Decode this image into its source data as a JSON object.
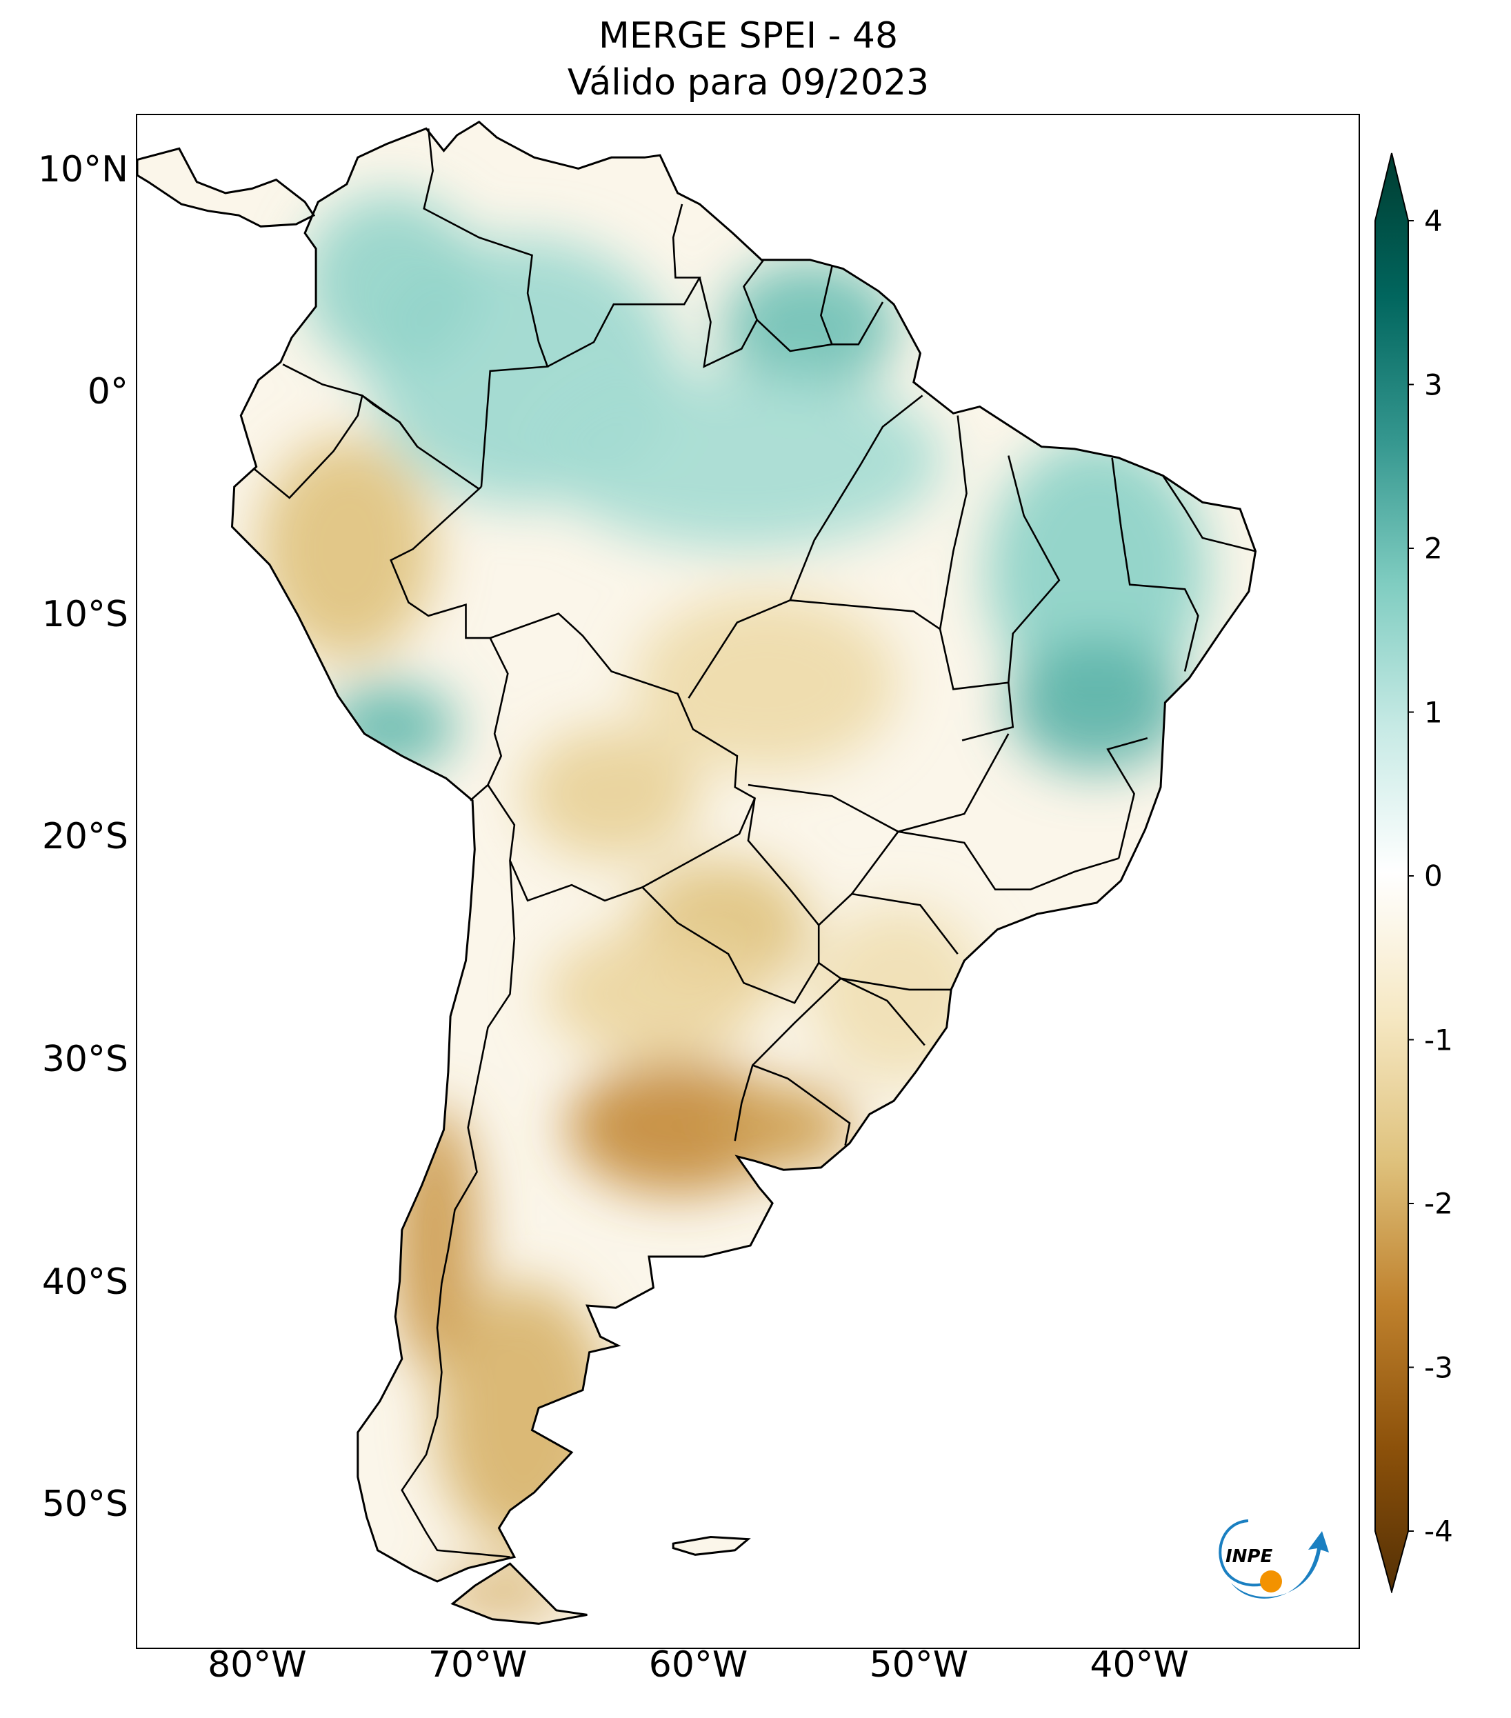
{
  "title": {
    "line1": "MERGE   SPEI - 48",
    "line2": "Válido para 09/2023"
  },
  "map": {
    "region": "South America",
    "projection": "PlateCarree",
    "extent": {
      "lon_min": -85.5,
      "lon_max": -30,
      "lat_min": -56.5,
      "lat_max": 12.5
    },
    "lat_ticks": [
      {
        "value": 10,
        "label": "10°N"
      },
      {
        "value": 0,
        "label": "0°"
      },
      {
        "value": -10,
        "label": "10°S"
      },
      {
        "value": -20,
        "label": "20°S"
      },
      {
        "value": -30,
        "label": "30°S"
      },
      {
        "value": -40,
        "label": "40°S"
      },
      {
        "value": -50,
        "label": "50°S"
      }
    ],
    "lon_ticks": [
      {
        "value": -80,
        "label": "80°W"
      },
      {
        "value": -70,
        "label": "70°W"
      },
      {
        "value": -60,
        "label": "60°W"
      },
      {
        "value": -50,
        "label": "50°W"
      },
      {
        "value": -40,
        "label": "40°W"
      }
    ],
    "field_regions": [
      {
        "name": "northwest-amazon-wet",
        "lon": -68,
        "lat": 1,
        "rx": 7,
        "ry": 6,
        "spei": 1.3
      },
      {
        "name": "guiana-wet",
        "lon": -55,
        "lat": 3,
        "rx": 4,
        "ry": 3,
        "spei": 1.8
      },
      {
        "name": "central-amazon-wet",
        "lon": -58,
        "lat": -3,
        "rx": 9,
        "ry": 4,
        "spei": 1.2
      },
      {
        "name": "colombia-west-wet",
        "lon": -74,
        "lat": 5,
        "rx": 4,
        "ry": 4,
        "spei": 1.4
      },
      {
        "name": "northeast-brazil-wet",
        "lon": -42,
        "lat": -8,
        "rx": 5,
        "ry": 6,
        "spei": 1.5
      },
      {
        "name": "bahia-wet",
        "lon": -42,
        "lat": -14,
        "rx": 4,
        "ry": 3,
        "spei": 2.0
      },
      {
        "name": "peru-coast-wet",
        "lon": -74,
        "lat": -15,
        "rx": 3,
        "ry": 2,
        "spei": 1.9
      },
      {
        "name": "peru-dry",
        "lon": -76,
        "lat": -7,
        "rx": 4,
        "ry": 5,
        "spei": -1.6
      },
      {
        "name": "mato-grosso-dry",
        "lon": -57,
        "lat": -13,
        "rx": 6,
        "ry": 4,
        "spei": -1.1
      },
      {
        "name": "bolivia-dry",
        "lon": -64,
        "lat": -18,
        "rx": 4,
        "ry": 3,
        "spei": -1.3
      },
      {
        "name": "paraguay-dry",
        "lon": -59,
        "lat": -24,
        "rx": 4,
        "ry": 3,
        "spei": -1.6
      },
      {
        "name": "chaco-dry",
        "lon": -62,
        "lat": -27,
        "rx": 5,
        "ry": 3,
        "spei": -1.2
      },
      {
        "name": "pampas-dry",
        "lon": -61,
        "lat": -33,
        "rx": 5,
        "ry": 3,
        "spei": -2.3
      },
      {
        "name": "uruguay-dry",
        "lon": -56,
        "lat": -33,
        "rx": 3,
        "ry": 2,
        "spei": -2.0
      },
      {
        "name": "south-brazil-dry",
        "lon": -51,
        "lat": -27,
        "rx": 4,
        "ry": 4,
        "spei": -1.0
      },
      {
        "name": "chile-central-dry",
        "lon": -72,
        "lat": -38,
        "rx": 2,
        "ry": 6,
        "spei": -2.1
      },
      {
        "name": "patagonia-dry",
        "lon": -68,
        "lat": -46,
        "rx": 4,
        "ry": 6,
        "spei": -1.8
      },
      {
        "name": "tierra-del-fuego-dry",
        "lon": -69,
        "lat": -54,
        "rx": 3,
        "ry": 1,
        "spei": -1.9
      }
    ]
  },
  "colorbar": {
    "min": -4,
    "max": 4,
    "ticks": [
      {
        "value": 4,
        "label": "4"
      },
      {
        "value": 3,
        "label": "3"
      },
      {
        "value": 2,
        "label": "2"
      },
      {
        "value": 1,
        "label": "1"
      },
      {
        "value": 0,
        "label": "0"
      },
      {
        "value": -1,
        "label": "-1"
      },
      {
        "value": -2,
        "label": "-2"
      },
      {
        "value": -3,
        "label": "-3"
      },
      {
        "value": -4,
        "label": "-4"
      }
    ],
    "colors": [
      "#543005",
      "#8c510a",
      "#bf812d",
      "#dfc27d",
      "#f6e8c3",
      "#ffffff",
      "#c7eae5",
      "#80cdc1",
      "#35978f",
      "#01665e",
      "#003c30"
    ]
  },
  "logo": {
    "text": "INPE",
    "arrow_color": "#1a7fc1",
    "dot_color": "#f39200"
  }
}
